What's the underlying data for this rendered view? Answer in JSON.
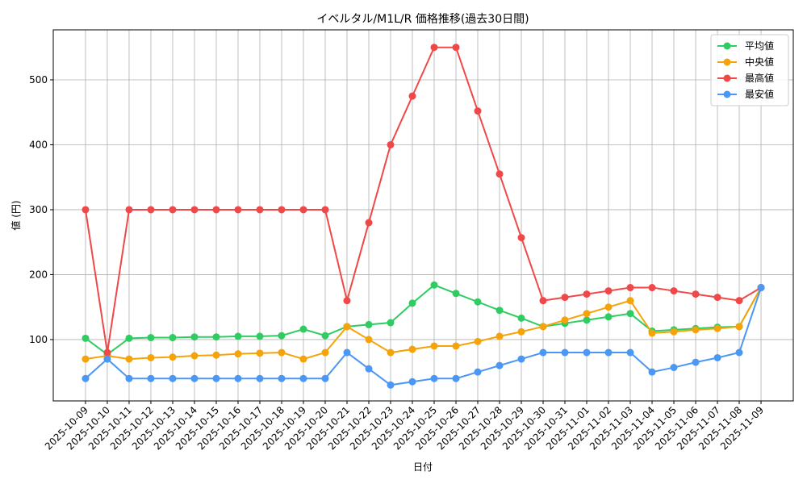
{
  "chart_data": {
    "type": "line",
    "title": "イベルタル/M1L/R 価格推移(過去30日間)",
    "x_label": "日付",
    "y_label": "値 (円)",
    "categories": [
      "2025-10-09",
      "2025-10-10",
      "2025-10-11",
      "2025-10-12",
      "2025-10-13",
      "2025-10-14",
      "2025-10-15",
      "2025-10-16",
      "2025-10-17",
      "2025-10-18",
      "2025-10-19",
      "2025-10-20",
      "2025-10-21",
      "2025-10-22",
      "2025-10-23",
      "2025-10-24",
      "2025-10-25",
      "2025-10-26",
      "2025-10-27",
      "2025-10-28",
      "2025-10-29",
      "2025-10-30",
      "2025-10-31",
      "2025-11-01",
      "2025-11-02",
      "2025-11-03",
      "2025-11-04",
      "2025-11-05",
      "2025-11-06",
      "2025-11-07",
      "2025-11-08",
      "2025-11-09"
    ],
    "series": [
      {
        "name": "平均値",
        "color": "#2ecc61",
        "values": [
          102,
          77,
          102,
          103,
          103,
          104,
          104,
          105,
          105,
          106,
          116,
          106,
          120,
          123,
          126,
          156,
          184,
          171,
          158,
          145,
          133,
          120,
          125,
          130,
          135,
          140,
          113,
          115,
          117,
          119,
          120,
          180
        ]
      },
      {
        "name": "中央値",
        "color": "#f5a30a",
        "values": [
          70,
          75,
          70,
          72,
          73,
          75,
          76,
          78,
          79,
          80,
          70,
          80,
          120,
          100,
          80,
          85,
          90,
          90,
          97,
          105,
          112,
          120,
          130,
          140,
          150,
          160,
          110,
          112,
          115,
          117,
          120,
          180
        ]
      },
      {
        "name": "最高値",
        "color": "#f04848",
        "values": [
          300,
          80,
          300,
          300,
          300,
          300,
          300,
          300,
          300,
          300,
          300,
          300,
          160,
          280,
          400,
          475,
          550,
          550,
          452,
          355,
          257,
          160,
          165,
          170,
          175,
          180,
          180,
          175,
          170,
          165,
          160,
          180
        ]
      },
      {
        "name": "最安値",
        "color": "#4a97f5",
        "values": [
          40,
          70,
          40,
          40,
          40,
          40,
          40,
          40,
          40,
          40,
          40,
          40,
          80,
          55,
          30,
          35,
          40,
          40,
          50,
          60,
          70,
          80,
          80,
          80,
          80,
          80,
          50,
          57,
          65,
          72,
          80,
          180
        ]
      }
    ],
    "ylim": [
      5.5,
      577
    ],
    "yticks": [
      100,
      200,
      300,
      400,
      500
    ],
    "grid": true,
    "legend": "upper right"
  }
}
